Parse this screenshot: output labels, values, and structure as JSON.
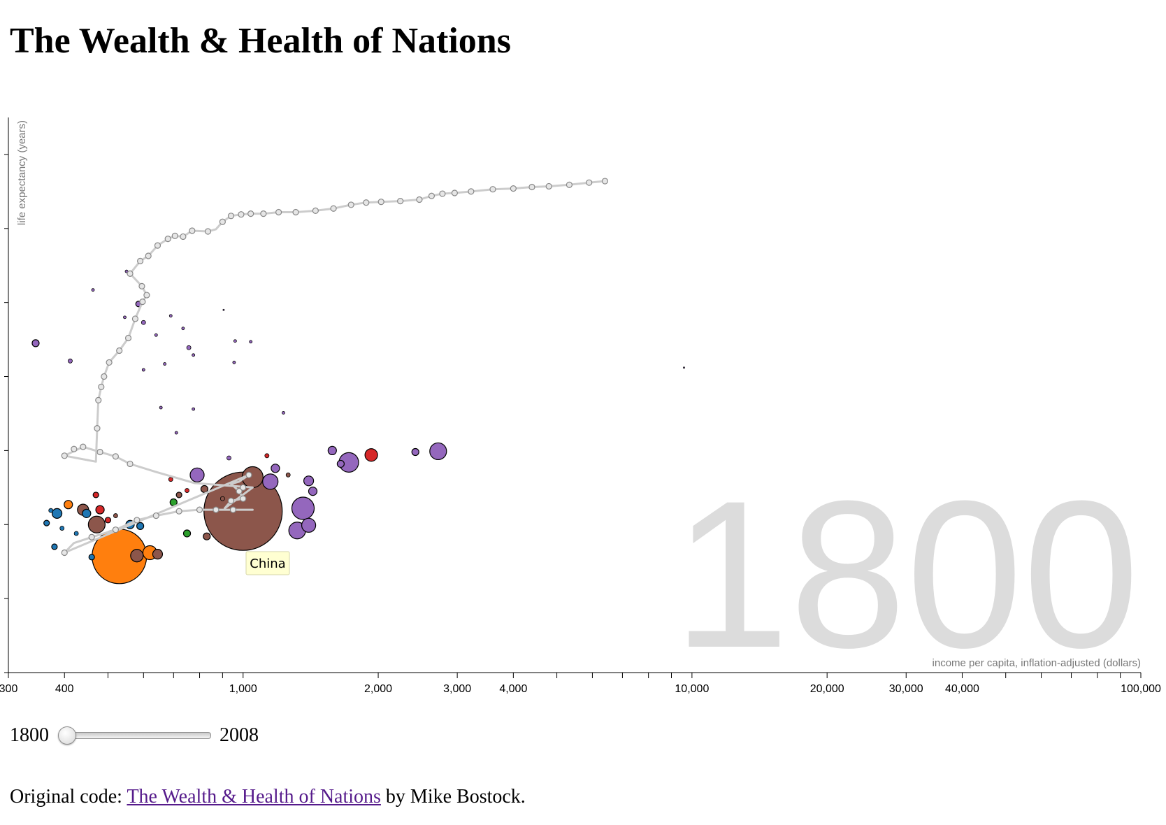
{
  "page": {
    "title": "The Wealth & Health of Nations",
    "slider": {
      "min_label": "1800",
      "max_label": "2008",
      "min": 1800,
      "max": 2008,
      "value": 1800
    },
    "footer": {
      "prefix": "Original code: ",
      "link_text": "The Wealth & Health of Nations",
      "suffix": " by Mike Bostock."
    }
  },
  "chart_data": {
    "type": "scatter",
    "title": "",
    "xlabel": "income per capita, inflation-adjusted (dollars)",
    "ylabel": "life expectancy (years)",
    "x_scale": "log",
    "xlim": [
      300,
      100000
    ],
    "ylim": [
      10,
      85
    ],
    "x_tick_labels": [
      {
        "value": 300,
        "label": "300"
      },
      {
        "value": 400,
        "label": "400"
      },
      {
        "value": 1000,
        "label": "1,000"
      },
      {
        "value": 2000,
        "label": "2,000"
      },
      {
        "value": 3000,
        "label": "3,000"
      },
      {
        "value": 4000,
        "label": "4,000"
      },
      {
        "value": 10000,
        "label": "10,000"
      },
      {
        "value": 20000,
        "label": "20,000"
      },
      {
        "value": 30000,
        "label": "30,000"
      },
      {
        "value": 40000,
        "label": "40,000"
      },
      {
        "value": 100000,
        "label": "100,000"
      }
    ],
    "x_minor_ticks": [
      500,
      600,
      700,
      800,
      900,
      5000,
      6000,
      7000,
      8000,
      9000,
      50000,
      60000,
      70000,
      80000,
      90000
    ],
    "y_ticks": [
      10,
      20,
      30,
      40,
      50,
      60,
      70,
      80
    ],
    "year": "1800",
    "tooltip": "China",
    "region_colors": {
      "Sub-Saharan Africa": "#1f77b4",
      "South Asia": "#ff7f0e",
      "Middle East & North Africa": "#2ca02c",
      "America": "#d62728",
      "Europe & Central Asia": "#9467bd",
      "East Asia & Pacific": "#8c564b"
    },
    "points": [
      {
        "income": 1000,
        "life": 31.8,
        "size": 56,
        "region": "East Asia & Pacific"
      },
      {
        "income": 530,
        "life": 25.7,
        "size": 39,
        "region": "South Asia"
      },
      {
        "income": 1360,
        "life": 32.2,
        "size": 16,
        "region": "Europe & Central Asia"
      },
      {
        "income": 1320,
        "life": 29.2,
        "size": 12,
        "region": "Europe & Central Asia"
      },
      {
        "income": 1400,
        "life": 29.9,
        "size": 10,
        "region": "Europe & Central Asia"
      },
      {
        "income": 1050,
        "life": 36.4,
        "size": 15,
        "region": "East Asia & Pacific"
      },
      {
        "income": 1150,
        "life": 35.8,
        "size": 11,
        "region": "Europe & Central Asia"
      },
      {
        "income": 1720,
        "life": 38.4,
        "size": 14,
        "region": "Europe & Central Asia"
      },
      {
        "income": 2720,
        "life": 39.9,
        "size": 12,
        "region": "Europe & Central Asia"
      },
      {
        "income": 1930,
        "life": 39.4,
        "size": 9,
        "region": "America"
      },
      {
        "income": 1580,
        "life": 40.0,
        "size": 6,
        "region": "Europe & Central Asia"
      },
      {
        "income": 2420,
        "life": 39.8,
        "size": 5,
        "region": "Europe & Central Asia"
      },
      {
        "income": 1650,
        "life": 38.2,
        "size": 5,
        "region": "Europe & Central Asia"
      },
      {
        "income": 1180,
        "life": 37.6,
        "size": 6,
        "region": "Europe & Central Asia"
      },
      {
        "income": 1400,
        "life": 35.9,
        "size": 7,
        "region": "Europe & Central Asia"
      },
      {
        "income": 1430,
        "life": 34.5,
        "size": 6,
        "region": "Europe & Central Asia"
      },
      {
        "income": 790,
        "life": 36.7,
        "size": 10,
        "region": "Europe & Central Asia"
      },
      {
        "income": 620,
        "life": 26.2,
        "size": 10,
        "region": "South Asia"
      },
      {
        "income": 645,
        "life": 26.0,
        "size": 7,
        "region": "East Asia & Pacific"
      },
      {
        "income": 580,
        "life": 25.8,
        "size": 9,
        "region": "East Asia & Pacific"
      },
      {
        "income": 472,
        "life": 30.0,
        "size": 12,
        "region": "East Asia & Pacific"
      },
      {
        "income": 440,
        "life": 32.0,
        "size": 8,
        "region": "East Asia & Pacific"
      },
      {
        "income": 385,
        "life": 31.5,
        "size": 7,
        "region": "Sub-Saharan Africa"
      },
      {
        "income": 408,
        "life": 32.7,
        "size": 6,
        "region": "South Asia"
      },
      {
        "income": 448,
        "life": 31.5,
        "size": 6,
        "region": "Sub-Saharan Africa"
      },
      {
        "income": 480,
        "life": 32.0,
        "size": 6,
        "region": "America"
      },
      {
        "income": 700,
        "life": 33.0,
        "size": 5,
        "region": "Middle East & North Africa"
      },
      {
        "income": 750,
        "life": 28.8,
        "size": 5,
        "region": "Middle East & North Africa"
      },
      {
        "income": 560,
        "life": 30.0,
        "size": 6,
        "region": "Sub-Saharan Africa"
      },
      {
        "income": 590,
        "life": 29.8,
        "size": 5,
        "region": "Sub-Saharan Africa"
      },
      {
        "income": 820,
        "life": 34.8,
        "size": 5,
        "region": "East Asia & Pacific"
      },
      {
        "income": 830,
        "life": 28.4,
        "size": 5,
        "region": "East Asia & Pacific"
      },
      {
        "income": 345,
        "life": 54.5,
        "size": 5,
        "region": "Europe & Central Asia"
      },
      {
        "income": 412,
        "life": 52.1,
        "size": 3,
        "region": "Europe & Central Asia"
      },
      {
        "income": 585,
        "life": 59.8,
        "size": 4,
        "region": "Europe & Central Asia"
      },
      {
        "income": 463,
        "life": 61.7,
        "size": 2,
        "region": "Europe & Central Asia"
      },
      {
        "income": 600,
        "life": 57.3,
        "size": 3,
        "region": "Europe & Central Asia"
      },
      {
        "income": 930,
        "life": 39.0,
        "size": 3,
        "region": "Europe & Central Asia"
      },
      {
        "income": 1130,
        "life": 39.3,
        "size": 3,
        "region": "America"
      },
      {
        "income": 1260,
        "life": 36.7,
        "size": 3,
        "region": "East Asia & Pacific"
      },
      {
        "income": 365,
        "life": 30.2,
        "size": 4,
        "region": "Sub-Saharan Africa"
      },
      {
        "income": 395,
        "life": 29.5,
        "size": 3,
        "region": "Sub-Saharan Africa"
      },
      {
        "income": 380,
        "life": 27.0,
        "size": 4,
        "region": "Sub-Saharan Africa"
      },
      {
        "income": 425,
        "life": 28.8,
        "size": 3,
        "region": "Sub-Saharan Africa"
      },
      {
        "income": 460,
        "life": 25.6,
        "size": 4,
        "region": "Sub-Saharan Africa"
      },
      {
        "income": 470,
        "life": 34.0,
        "size": 4,
        "region": "America"
      },
      {
        "income": 690,
        "life": 36.1,
        "size": 3,
        "region": "America"
      },
      {
        "income": 750,
        "life": 34.6,
        "size": 3,
        "region": "America"
      },
      {
        "income": 720,
        "life": 34.0,
        "size": 4,
        "region": "East Asia & Pacific"
      },
      {
        "income": 373,
        "life": 31.9,
        "size": 3,
        "region": "Sub-Saharan Africa"
      },
      {
        "income": 900,
        "life": 33.5,
        "size": 3,
        "region": "East Asia & Pacific"
      },
      {
        "income": 500,
        "life": 30.6,
        "size": 4,
        "region": "America"
      },
      {
        "income": 520,
        "life": 31.2,
        "size": 3,
        "region": "East Asia & Pacific"
      },
      {
        "income": 9600,
        "life": 51.2,
        "size": 1,
        "region": "Europe & Central Asia"
      },
      {
        "income": 550,
        "life": 64.2,
        "size": 2,
        "region": "Europe & Central Asia"
      },
      {
        "income": 905,
        "life": 59.0,
        "size": 1,
        "region": "Europe & Central Asia"
      },
      {
        "income": 960,
        "life": 54.8,
        "size": 2,
        "region": "Europe & Central Asia"
      },
      {
        "income": 1040,
        "life": 54.7,
        "size": 2,
        "region": "Europe & Central Asia"
      },
      {
        "income": 757,
        "life": 53.9,
        "size": 3,
        "region": "Europe & Central Asia"
      },
      {
        "income": 775,
        "life": 52.9,
        "size": 2,
        "region": "Europe & Central Asia"
      },
      {
        "income": 669,
        "life": 51.7,
        "size": 2,
        "region": "Europe & Central Asia"
      },
      {
        "income": 955,
        "life": 51.9,
        "size": 2,
        "region": "Europe & Central Asia"
      },
      {
        "income": 735,
        "life": 56.5,
        "size": 2,
        "region": "Europe & Central Asia"
      },
      {
        "income": 640,
        "life": 55.6,
        "size": 2,
        "region": "Europe & Central Asia"
      },
      {
        "income": 775,
        "life": 45.6,
        "size": 2,
        "region": "Europe & Central Asia"
      },
      {
        "income": 1230,
        "life": 45.1,
        "size": 2,
        "region": "Europe & Central Asia"
      },
      {
        "income": 656,
        "life": 45.8,
        "size": 2,
        "region": "Europe & Central Asia"
      },
      {
        "income": 710,
        "life": 42.4,
        "size": 2,
        "region": "Europe & Central Asia"
      },
      {
        "income": 545,
        "life": 58.0,
        "size": 2,
        "region": "Europe & Central Asia"
      },
      {
        "income": 690,
        "life": 58.2,
        "size": 2,
        "region": "Europe & Central Asia"
      },
      {
        "income": 600,
        "life": 50.9,
        "size": 2,
        "region": "Europe & Central Asia"
      }
    ],
    "trail": {
      "name": "China",
      "points": [
        [
          1050,
          32
        ],
        [
          800,
          32
        ],
        [
          720,
          31.8
        ],
        [
          640,
          31.2
        ],
        [
          580,
          30.6
        ],
        [
          520,
          29.3
        ],
        [
          460,
          28.3
        ],
        [
          420,
          27.5
        ],
        [
          400,
          26.2
        ],
        [
          1030,
          36.7
        ],
        [
          980,
          35.8
        ],
        [
          940,
          35.5
        ],
        [
          980,
          34.5
        ],
        [
          1000,
          33.5
        ],
        [
          940,
          33.2
        ],
        [
          910,
          32.2
        ],
        [
          1050,
          35.0
        ],
        [
          780,
          35.6
        ],
        [
          640,
          37.1
        ],
        [
          560,
          38.2
        ],
        [
          520,
          39.2
        ],
        [
          480,
          39.8
        ],
        [
          440,
          40.5
        ],
        [
          400,
          39.3
        ],
        [
          470,
          38.5
        ],
        [
          473,
          43.0
        ],
        [
          476,
          46.8
        ],
        [
          483,
          48.6
        ],
        [
          490,
          50.0
        ],
        [
          503,
          51.9
        ],
        [
          530,
          53.5
        ],
        [
          555,
          55.2
        ],
        [
          575,
          57.8
        ],
        [
          597,
          60.1
        ],
        [
          610,
          61.0
        ],
        [
          595,
          62.2
        ],
        [
          560,
          63.9
        ],
        [
          590,
          65.6
        ],
        [
          615,
          66.3
        ],
        [
          645,
          67.7
        ],
        [
          680,
          68.6
        ],
        [
          705,
          69.0
        ],
        [
          735,
          68.9
        ],
        [
          770,
          69.7
        ],
        [
          835,
          69.6
        ],
        [
          870,
          69.9
        ],
        [
          900,
          70.9
        ],
        [
          940,
          71.7
        ],
        [
          990,
          71.9
        ],
        [
          1040,
          72.0
        ],
        [
          1110,
          72.0
        ],
        [
          1200,
          72.2
        ],
        [
          1310,
          72.2
        ],
        [
          1450,
          72.4
        ],
        [
          1590,
          72.7
        ],
        [
          1740,
          73.2
        ],
        [
          1880,
          73.5
        ],
        [
          2030,
          73.6
        ],
        [
          2240,
          73.7
        ],
        [
          2470,
          73.9
        ],
        [
          2630,
          74.4
        ],
        [
          2780,
          74.7
        ],
        [
          2960,
          74.8
        ],
        [
          3220,
          75.0
        ],
        [
          3600,
          75.3
        ],
        [
          4000,
          75.4
        ],
        [
          4400,
          75.6
        ],
        [
          4800,
          75.7
        ],
        [
          5330,
          75.9
        ],
        [
          5900,
          76.2
        ],
        [
          6400,
          76.4
        ]
      ],
      "markers": [
        [
          400,
          26.2
        ],
        [
          460,
          28.3
        ],
        [
          520,
          29.3
        ],
        [
          580,
          30.6
        ],
        [
          640,
          31.2
        ],
        [
          720,
          31.8
        ],
        [
          800,
          32
        ],
        [
          870,
          32
        ],
        [
          950,
          32
        ],
        [
          1000,
          33.5
        ],
        [
          940,
          33.2
        ],
        [
          980,
          34.5
        ],
        [
          1000,
          35.0
        ],
        [
          1030,
          36.7
        ],
        [
          400,
          39.3
        ],
        [
          420,
          40.2
        ],
        [
          440,
          40.5
        ],
        [
          480,
          39.8
        ],
        [
          520,
          39.2
        ],
        [
          560,
          38.2
        ],
        [
          473,
          43.0
        ],
        [
          476,
          46.8
        ],
        [
          483,
          48.6
        ],
        [
          490,
          50.0
        ],
        [
          503,
          51.9
        ],
        [
          530,
          53.5
        ],
        [
          555,
          55.2
        ],
        [
          575,
          57.8
        ],
        [
          597,
          60.1
        ],
        [
          610,
          61.0
        ],
        [
          595,
          62.2
        ],
        [
          560,
          63.9
        ],
        [
          590,
          65.6
        ],
        [
          615,
          66.3
        ],
        [
          645,
          67.7
        ],
        [
          680,
          68.6
        ],
        [
          705,
          69.0
        ],
        [
          735,
          68.9
        ],
        [
          770,
          69.7
        ],
        [
          835,
          69.6
        ],
        [
          900,
          70.9
        ],
        [
          940,
          71.7
        ],
        [
          990,
          71.9
        ],
        [
          1040,
          72.0
        ],
        [
          1110,
          72.0
        ],
        [
          1200,
          72.2
        ],
        [
          1310,
          72.2
        ],
        [
          1450,
          72.4
        ],
        [
          1590,
          72.7
        ],
        [
          1740,
          73.2
        ],
        [
          1880,
          73.5
        ],
        [
          2030,
          73.6
        ],
        [
          2240,
          73.7
        ],
        [
          2470,
          73.9
        ],
        [
          2630,
          74.4
        ],
        [
          2780,
          74.7
        ],
        [
          2960,
          74.8
        ],
        [
          3220,
          75.0
        ],
        [
          3600,
          75.3
        ],
        [
          4000,
          75.4
        ],
        [
          4400,
          75.6
        ],
        [
          4800,
          75.7
        ],
        [
          5330,
          75.9
        ],
        [
          5900,
          76.2
        ],
        [
          6400,
          76.4
        ]
      ]
    }
  }
}
